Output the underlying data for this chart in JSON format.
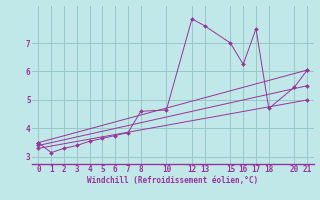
{
  "xlabel": "Windchill (Refroidissement éolien,°C)",
  "bg_color": "#c0e8e8",
  "grid_color": "#98c8c8",
  "line_color": "#993399",
  "xlim": [
    -0.5,
    21.5
  ],
  "ylim": [
    2.75,
    8.3
  ],
  "xticks": [
    0,
    1,
    2,
    3,
    4,
    5,
    6,
    7,
    8,
    10,
    12,
    13,
    15,
    16,
    17,
    18,
    20,
    21
  ],
  "yticks": [
    3,
    4,
    5,
    6,
    7
  ],
  "series": [
    {
      "x": [
        0,
        1,
        2,
        3,
        4,
        5,
        6,
        7,
        8,
        10,
        12,
        13,
        15,
        16,
        17,
        18,
        20,
        21
      ],
      "y": [
        3.5,
        3.15,
        3.3,
        3.4,
        3.55,
        3.65,
        3.75,
        3.85,
        4.6,
        4.65,
        7.85,
        7.6,
        7.0,
        6.25,
        7.5,
        4.7,
        5.45,
        6.05
      ]
    },
    {
      "x": [
        0,
        21
      ],
      "y": [
        3.5,
        6.05
      ]
    },
    {
      "x": [
        0,
        21
      ],
      "y": [
        3.4,
        5.5
      ]
    },
    {
      "x": [
        0,
        21
      ],
      "y": [
        3.3,
        5.0
      ]
    }
  ]
}
